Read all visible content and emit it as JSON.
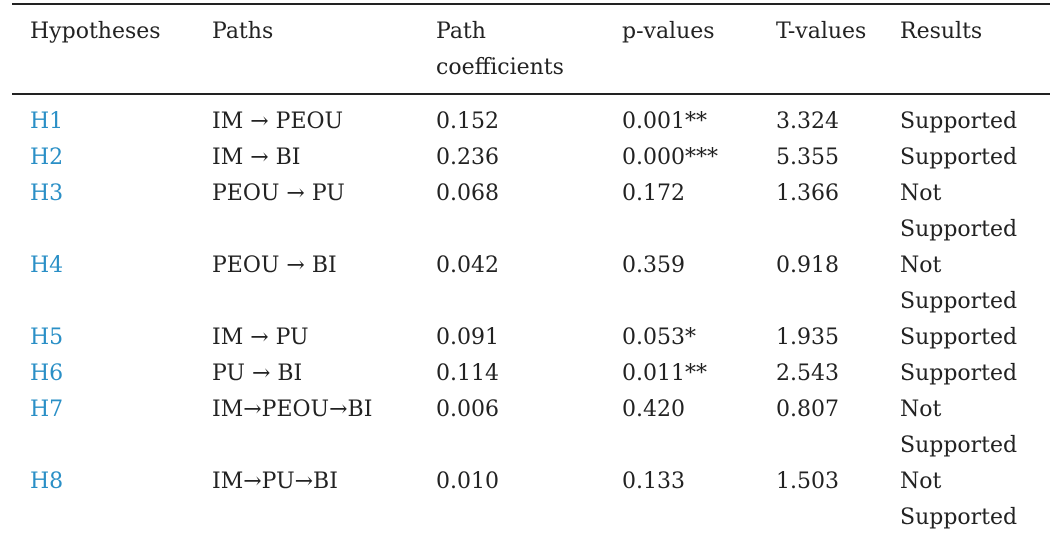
{
  "table": {
    "headers": [
      "Hypotheses",
      "Paths",
      "Path coefficients",
      "p-values",
      "T-values",
      "Results"
    ],
    "rows": [
      {
        "hypothesis": "H1",
        "path": "IM → PEOU",
        "coefficient": "0.152",
        "p_value": "0.001**",
        "t_value": "3.324",
        "result": "Supported"
      },
      {
        "hypothesis": "H2",
        "path": "IM → BI",
        "coefficient": "0.236",
        "p_value": "0.000***",
        "t_value": "5.355",
        "result": "Supported"
      },
      {
        "hypothesis": "H3",
        "path": "PEOU → PU",
        "coefficient": "0.068",
        "p_value": "0.172",
        "t_value": "1.366",
        "result": "Not Supported"
      },
      {
        "hypothesis": "H4",
        "path": "PEOU → BI",
        "coefficient": "0.042",
        "p_value": "0.359",
        "t_value": "0.918",
        "result": "Not Supported"
      },
      {
        "hypothesis": "H5",
        "path": "IM → PU",
        "coefficient": "0.091",
        "p_value": "0.053*",
        "t_value": "1.935",
        "result": "Supported"
      },
      {
        "hypothesis": "H6",
        "path": "PU → BI",
        "coefficient": "0.114",
        "p_value": "0.011**",
        "t_value": "2.543",
        "result": "Supported"
      },
      {
        "hypothesis": "H7",
        "path": "IM→PEOU→BI",
        "coefficient": "0.006",
        "p_value": "0.420",
        "t_value": "0.807",
        "result": "Not Supported"
      },
      {
        "hypothesis": "H8",
        "path": "IM→PU→BI",
        "coefficient": "0.010",
        "p_value": "0.133",
        "t_value": "1.503",
        "result": "Not Supported"
      }
    ]
  },
  "colors": {
    "hypothesis_link": "#2a8fc6",
    "text": "#222222"
  }
}
